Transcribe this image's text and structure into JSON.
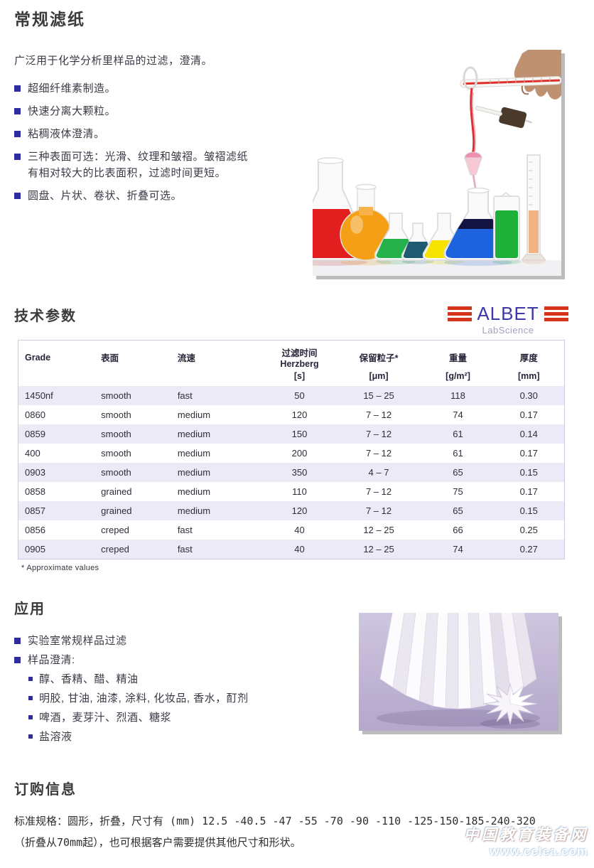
{
  "page_title": "常规滤纸",
  "intro": "广泛用于化学分析里样品的过滤，澄清。",
  "features": [
    "超细纤维素制造。",
    "快速分离大颗粒。",
    "粘稠液体澄清。",
    "三种表面可选：光滑、纹理和皱褶。皱褶滤纸有相对较大的比表面积，过滤时间更短。",
    "圆盘、片状、卷状、折叠可选。"
  ],
  "tech": {
    "heading": "技术参数",
    "logo": {
      "brand": "ALBET",
      "tagline": "LabScience",
      "stripe_color": "#d43418",
      "brand_color": "#3d37a8"
    },
    "table": {
      "zebra_color": "#ebeaf6",
      "columns": [
        {
          "label": "Grade",
          "sub": "",
          "unit": ""
        },
        {
          "label": "表面",
          "sub": "",
          "unit": ""
        },
        {
          "label": "流速",
          "sub": "",
          "unit": ""
        },
        {
          "label": "过滤时间",
          "sub": "Herzberg",
          "unit": "[s]"
        },
        {
          "label": "保留粒子*",
          "sub": "",
          "unit": "[μm]"
        },
        {
          "label": "重量",
          "sub": "",
          "unit": "[g/m²]"
        },
        {
          "label": "厚度",
          "sub": "",
          "unit": "[mm]"
        }
      ],
      "rows": [
        [
          "1450nf",
          "smooth",
          "fast",
          "50",
          "15 – 25",
          "118",
          "0.30"
        ],
        [
          "0860",
          "smooth",
          "medium",
          "120",
          "7 – 12",
          "74",
          "0.17"
        ],
        [
          "0859",
          "smooth",
          "medium",
          "150",
          "7 – 12",
          "61",
          "0.14"
        ],
        [
          "400",
          "smooth",
          "medium",
          "200",
          "7 – 12",
          "61",
          "0.17"
        ],
        [
          "0903",
          "smooth",
          "medium",
          "350",
          "4 – 7",
          "65",
          "0.15"
        ],
        [
          "0858",
          "grained",
          "medium",
          "110",
          "7 – 12",
          "75",
          "0.17"
        ],
        [
          "0857",
          "grained",
          "medium",
          "120",
          "7 – 12",
          "65",
          "0.15"
        ],
        [
          "0856",
          "creped",
          "fast",
          "40",
          "12 – 25",
          "66",
          "0.25"
        ],
        [
          "0905",
          "creped",
          "fast",
          "40",
          "12 – 25",
          "74",
          "0.27"
        ]
      ]
    },
    "footnote": "* Approximate values"
  },
  "applications": {
    "heading": "应用",
    "items": [
      "实验室常规样品过滤",
      "样品澄清:"
    ],
    "sub_items": [
      "醇、香精、醋、精油",
      "明胶, 甘油, 油漆, 涂料, 化妆品, 香水，酊剂",
      "啤酒，麦芽汁、烈酒、糖浆",
      "盐溶液"
    ]
  },
  "ordering": {
    "heading": "订购信息",
    "line1": "标准规格：圆形，折叠，尺寸有 (mm) 12.5 -40.5 -47 -55 -70 -90 -110 -125-150-185-240-320",
    "line2": "（折叠从70mm起），也可根据客户需要提供其他尺寸和形状。"
  },
  "watermark": {
    "line1": "中国教育装备网",
    "line2": "www.celea.com"
  },
  "colors": {
    "bullet_square": "#2f2d9e",
    "body_text": "#3a3a46",
    "heading_text": "#3b3b3b",
    "table_border": "#ccc9e2"
  }
}
